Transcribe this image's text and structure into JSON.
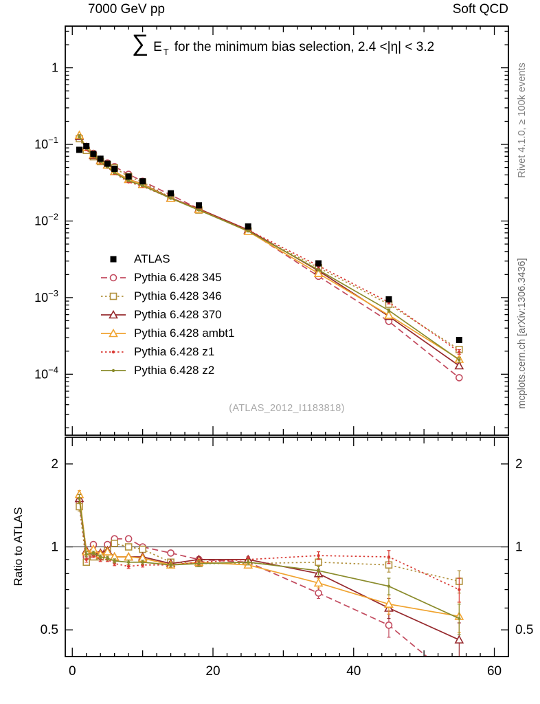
{
  "header": {
    "left": "7000 GeV pp",
    "right": "Soft QCD"
  },
  "title": {
    "sum": "∑",
    "obs": "E",
    "sub": "T",
    "rest": "for the minimum bias selection, 2.4 <|η| < 3.2"
  },
  "watermark": "(ATLAS_2012_I1183818)",
  "side_labels": {
    "top_right": "Rivet 4.1.0, ≥ 100k events",
    "bottom_right": "mcplots.cern.ch [arXiv:1306.3436]"
  },
  "chart_data": {
    "type": "line",
    "title": "∑ E_T for the minimum bias selection, 2.4 <|η| < 3.2",
    "xlabel": "",
    "xlim": [
      -1,
      62
    ],
    "xticks_labeled": [
      0,
      20,
      40,
      60
    ],
    "x": [
      1,
      2,
      3,
      4,
      5,
      6,
      8,
      10,
      14,
      18,
      25,
      35,
      45,
      55
    ],
    "main_panel": {
      "yscale": "log",
      "ylim": [
        1.6e-05,
        3.5
      ],
      "ytick_exponents": [
        0,
        -1,
        -2,
        -3,
        -4
      ]
    },
    "ratio_panel": {
      "ylabel": "Ratio to ATLAS",
      "yscale": "log",
      "ylim": [
        0.4,
        2.5
      ],
      "yticks_labeled": [
        0.5,
        1,
        2
      ],
      "yticks_minor": [
        0.4,
        0.6,
        0.7,
        0.8,
        0.9
      ],
      "reference_line": 1
    },
    "ratio_err": [
      0.05,
      0.02,
      0.015,
      0.015,
      0.015,
      0.015,
      0.015,
      0.015,
      0.015,
      0.02,
      0.02,
      0.03,
      0.05,
      0.07
    ],
    "series": [
      {
        "name": "ATLAS",
        "color": "#000000",
        "line": "none",
        "marker": "square-filled",
        "values": [
          0.085,
          0.095,
          0.075,
          0.065,
          0.056,
          0.048,
          0.038,
          0.033,
          0.023,
          0.016,
          0.0085,
          0.0028,
          0.00095,
          0.00028
        ]
      },
      {
        "name": "Pythia 6.428 345",
        "color": "#c24a5e",
        "line": "dash",
        "marker": "circle-open",
        "values": [
          0.1233,
          0.0874,
          0.0765,
          0.0605,
          0.0571,
          0.0514,
          0.0407,
          0.033,
          0.0219,
          0.0144,
          0.00748,
          0.0019,
          0.00049,
          9e-05
        ],
        "ratio": [
          1.45,
          0.92,
          1.02,
          0.93,
          1.02,
          1.07,
          1.07,
          1.0,
          0.95,
          0.9,
          0.88,
          0.68,
          0.52,
          0.32
        ]
      },
      {
        "name": "Pythia 6.428 346",
        "color": "#b2923f",
        "line": "dot",
        "marker": "square-open",
        "values": [
          0.119,
          0.0836,
          0.069,
          0.0598,
          0.0543,
          0.0494,
          0.038,
          0.0323,
          0.0202,
          0.0139,
          0.0074,
          0.00246,
          0.00082,
          0.00021
        ],
        "ratio": [
          1.4,
          0.88,
          0.92,
          0.92,
          0.97,
          1.03,
          1.0,
          0.98,
          0.88,
          0.87,
          0.87,
          0.88,
          0.86,
          0.75
        ]
      },
      {
        "name": "Pythia 6.428 370",
        "color": "#96292d",
        "line": "solid",
        "marker": "triangle-open",
        "values": [
          0.1275,
          0.0922,
          0.072,
          0.0618,
          0.0543,
          0.0442,
          0.035,
          0.0304,
          0.02,
          0.0144,
          0.00765,
          0.00224,
          0.00057,
          0.000129
        ],
        "ratio": [
          1.5,
          0.97,
          0.96,
          0.95,
          0.97,
          0.92,
          0.92,
          0.92,
          0.87,
          0.9,
          0.9,
          0.8,
          0.6,
          0.46
        ]
      },
      {
        "name": "Pythia 6.428 ambt1",
        "color": "#f0a32f",
        "line": "solid",
        "marker": "triangle-open",
        "values": [
          0.1318,
          0.0912,
          0.0735,
          0.0611,
          0.0538,
          0.0442,
          0.035,
          0.03,
          0.0198,
          0.0141,
          0.00731,
          0.00207,
          0.00059,
          0.000157
        ],
        "ratio": [
          1.55,
          0.96,
          0.98,
          0.94,
          0.96,
          0.92,
          0.92,
          0.91,
          0.86,
          0.88,
          0.86,
          0.74,
          0.62,
          0.56
        ]
      },
      {
        "name": "Pythia 6.428 z1",
        "color": "#d93a34",
        "line": "dot",
        "marker": "dot",
        "values": [
          0.1275,
          0.0855,
          0.0698,
          0.0585,
          0.0504,
          0.0418,
          0.0323,
          0.0284,
          0.0198,
          0.0141,
          0.00765,
          0.0026,
          0.00087,
          0.000196
        ],
        "ratio": [
          1.5,
          0.9,
          0.93,
          0.9,
          0.9,
          0.87,
          0.85,
          0.86,
          0.86,
          0.88,
          0.9,
          0.93,
          0.92,
          0.7
        ]
      },
      {
        "name": "Pythia 6.428 z2",
        "color": "#8a8b2b",
        "line": "solid",
        "marker": "dot",
        "values": [
          0.1275,
          0.0893,
          0.0713,
          0.0598,
          0.051,
          0.0427,
          0.0334,
          0.029,
          0.0198,
          0.0139,
          0.0074,
          0.0023,
          0.00068,
          0.000154
        ],
        "ratio": [
          1.5,
          0.94,
          0.95,
          0.92,
          0.91,
          0.89,
          0.88,
          0.88,
          0.86,
          0.87,
          0.88,
          0.82,
          0.72,
          0.55
        ]
      }
    ]
  }
}
